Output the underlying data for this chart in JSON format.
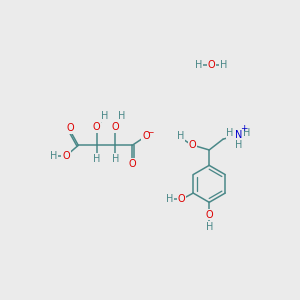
{
  "bg_color": "#ebebeb",
  "C": "#4a8888",
  "O": "#dd0000",
  "H": "#4a8888",
  "N": "#0000cc",
  "bond": "#4a8888",
  "fig_w": 3.0,
  "fig_h": 3.0,
  "dpi": 100,
  "fs": 7.0,
  "fs_small": 5.5,
  "lw": 1.1
}
